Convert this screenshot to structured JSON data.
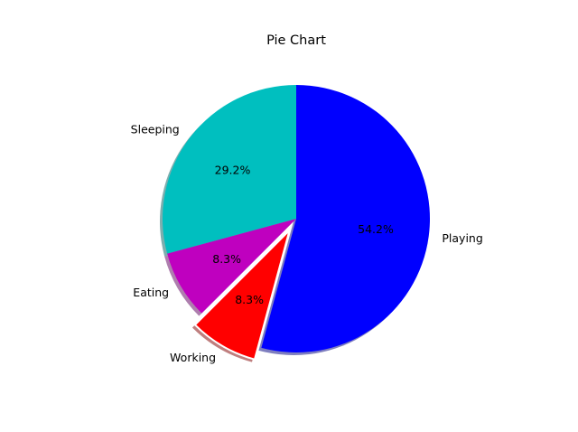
{
  "chart_data": {
    "type": "pie",
    "title": "Pie Chart",
    "slices": [
      {
        "label": "Playing",
        "value": 54.2,
        "pct_label": "54.2%",
        "color": "#0000ff",
        "explode": false
      },
      {
        "label": "Working",
        "value": 8.3,
        "pct_label": "8.3%",
        "color": "#ff0000",
        "explode": true
      },
      {
        "label": "Eating",
        "value": 8.3,
        "pct_label": "8.3%",
        "color": "#bf00bf",
        "explode": false
      },
      {
        "label": "Sleeping",
        "value": 29.2,
        "pct_label": "29.2%",
        "color": "#00bfbf",
        "explode": false
      }
    ],
    "start_angle_deg": 90,
    "direction": "clockwise",
    "shadow": true,
    "legend": "none"
  }
}
